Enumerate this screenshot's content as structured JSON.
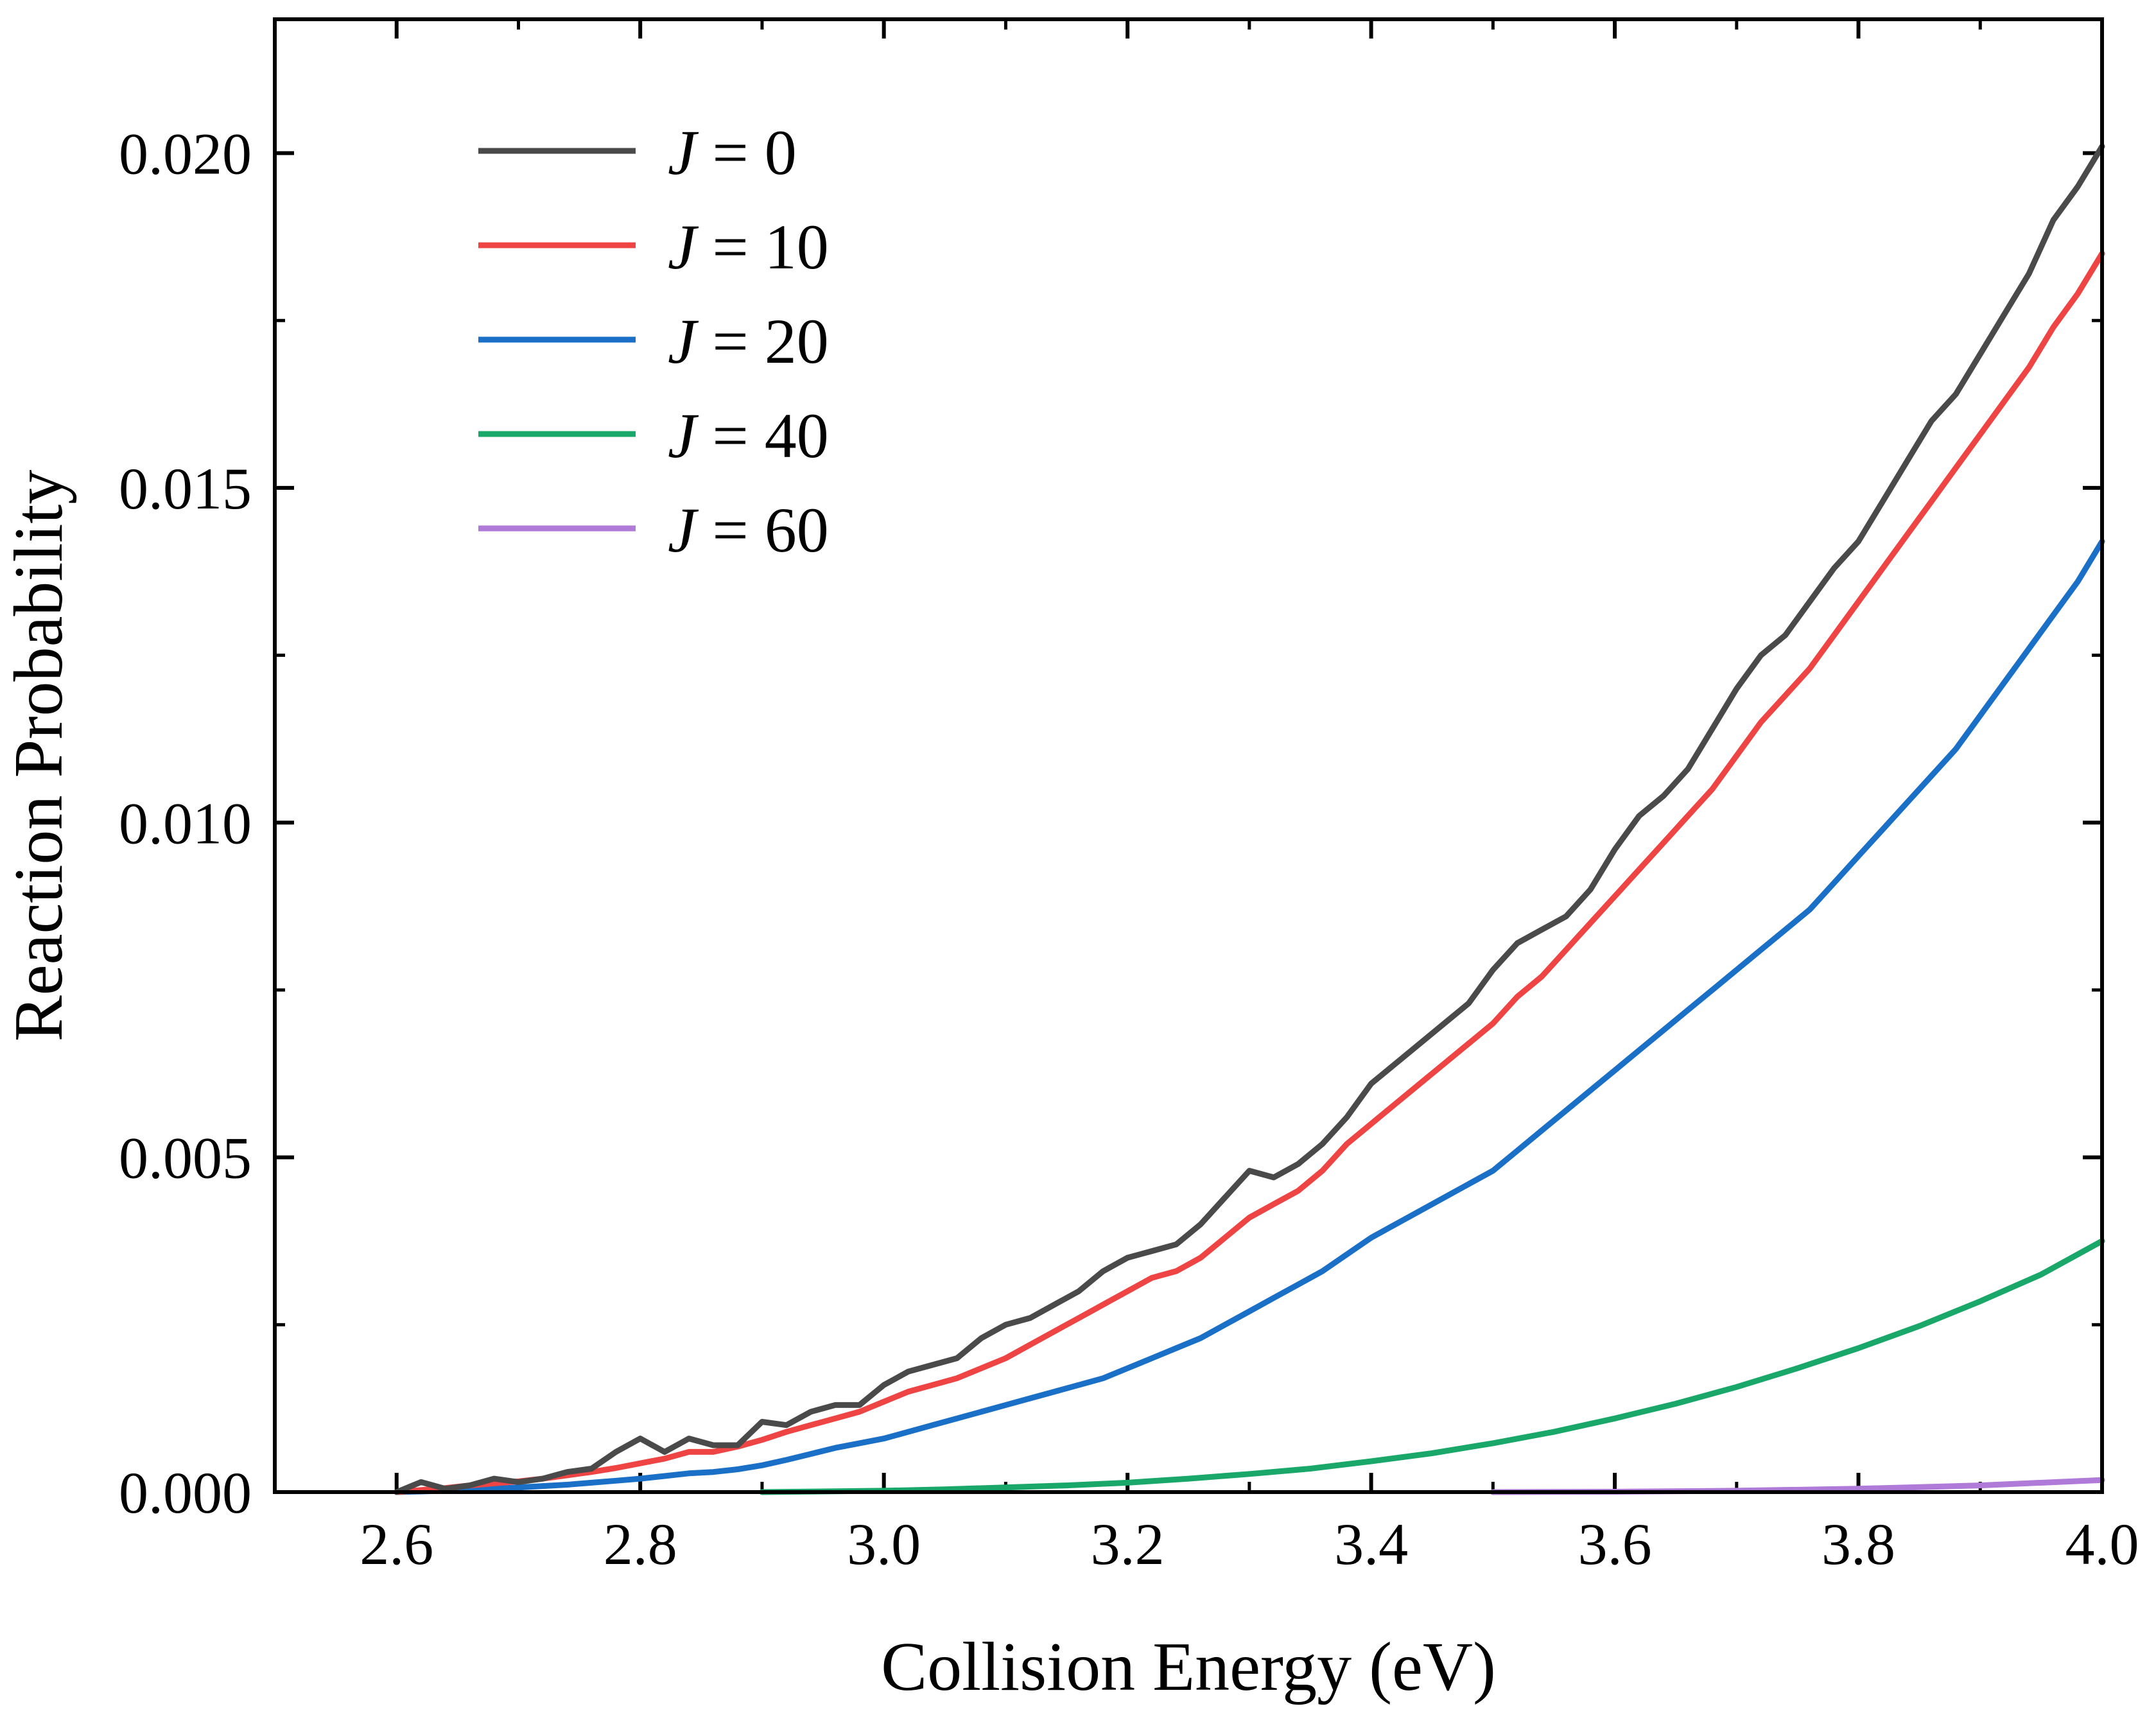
{
  "chart_data": {
    "type": "line",
    "title": "",
    "xlabel": "Collision Energy (eV)",
    "ylabel": "Reaction Probability",
    "xlim": [
      2.5,
      4.0
    ],
    "ylim": [
      0.0,
      0.022
    ],
    "grid": false,
    "legend_position": "top-left",
    "x_ticks": [
      2.6,
      2.8,
      3.0,
      3.2,
      3.4,
      3.6,
      3.8,
      4.0
    ],
    "x_tick_labels": [
      "2.6",
      "2.8",
      "3.0",
      "3.2",
      "3.4",
      "3.6",
      "3.8",
      "4.0"
    ],
    "y_ticks": [
      0.0,
      0.005,
      0.01,
      0.015,
      0.02
    ],
    "y_tick_labels": [
      "0.000",
      "0.005",
      "0.010",
      "0.015",
      "0.020"
    ],
    "y_minor_ticks": [
      0.0025,
      0.0075,
      0.0125,
      0.0175
    ],
    "x_minor_ticks": [
      2.5,
      2.7,
      2.9,
      3.1,
      3.3,
      3.5,
      3.7,
      3.9
    ],
    "series": [
      {
        "name": "J = 0",
        "legend_prefix": "J",
        "legend_suffix": " = 0",
        "color": "#4a4a4a",
        "x": [
          2.6,
          2.62,
          2.64,
          2.66,
          2.68,
          2.7,
          2.72,
          2.74,
          2.76,
          2.78,
          2.8,
          2.82,
          2.84,
          2.86,
          2.88,
          2.9,
          2.92,
          2.94,
          2.96,
          2.98,
          3.0,
          3.02,
          3.04,
          3.06,
          3.08,
          3.1,
          3.12,
          3.14,
          3.16,
          3.18,
          3.2,
          3.22,
          3.24,
          3.26,
          3.28,
          3.3,
          3.32,
          3.34,
          3.36,
          3.38,
          3.4,
          3.42,
          3.44,
          3.46,
          3.48,
          3.5,
          3.52,
          3.54,
          3.56,
          3.58,
          3.6,
          3.62,
          3.64,
          3.66,
          3.68,
          3.7,
          3.72,
          3.74,
          3.76,
          3.78,
          3.8,
          3.82,
          3.84,
          3.86,
          3.88,
          3.9,
          3.92,
          3.94,
          3.96,
          3.98,
          4.0
        ],
        "y": [
          0.0,
          0.00015,
          5e-05,
          0.0001,
          0.0002,
          0.00015,
          0.0002,
          0.0003,
          0.00035,
          0.0006,
          0.0008,
          0.0006,
          0.0008,
          0.0007,
          0.0007,
          0.00105,
          0.001,
          0.0012,
          0.0013,
          0.0013,
          0.0016,
          0.0018,
          0.0019,
          0.002,
          0.0023,
          0.0025,
          0.0026,
          0.0028,
          0.003,
          0.0033,
          0.0035,
          0.0036,
          0.0037,
          0.004,
          0.0044,
          0.0048,
          0.0047,
          0.0049,
          0.0052,
          0.0056,
          0.0061,
          0.0064,
          0.0067,
          0.007,
          0.0073,
          0.0078,
          0.0082,
          0.0084,
          0.0086,
          0.009,
          0.0096,
          0.0101,
          0.0104,
          0.0108,
          0.0114,
          0.012,
          0.0125,
          0.0128,
          0.0133,
          0.0138,
          0.0142,
          0.0148,
          0.0154,
          0.016,
          0.0164,
          0.017,
          0.0176,
          0.0182,
          0.019,
          0.0195,
          0.0201
        ]
      },
      {
        "name": "J = 10",
        "legend_prefix": "J",
        "legend_suffix": " = 10",
        "color": "#ee4444",
        "x": [
          2.6,
          2.62,
          2.64,
          2.66,
          2.68,
          2.7,
          2.72,
          2.74,
          2.76,
          2.78,
          2.8,
          2.82,
          2.84,
          2.86,
          2.88,
          2.9,
          2.92,
          2.94,
          2.96,
          2.98,
          3.0,
          3.02,
          3.04,
          3.06,
          3.08,
          3.1,
          3.12,
          3.14,
          3.16,
          3.18,
          3.2,
          3.22,
          3.24,
          3.26,
          3.28,
          3.3,
          3.32,
          3.34,
          3.36,
          3.38,
          3.4,
          3.42,
          3.44,
          3.46,
          3.48,
          3.5,
          3.52,
          3.54,
          3.56,
          3.58,
          3.6,
          3.62,
          3.64,
          3.66,
          3.68,
          3.7,
          3.72,
          3.74,
          3.76,
          3.78,
          3.8,
          3.82,
          3.84,
          3.86,
          3.88,
          3.9,
          3.92,
          3.94,
          3.96,
          3.98,
          4.0
        ],
        "y": [
          0.0,
          3e-05,
          6e-05,
          0.0001,
          0.00013,
          0.00016,
          0.0002,
          0.00025,
          0.0003,
          0.00036,
          0.00043,
          0.0005,
          0.0006,
          0.0006,
          0.00068,
          0.00078,
          0.0009,
          0.001,
          0.0011,
          0.0012,
          0.00135,
          0.0015,
          0.0016,
          0.0017,
          0.00185,
          0.002,
          0.0022,
          0.0024,
          0.0026,
          0.0028,
          0.003,
          0.0032,
          0.0033,
          0.0035,
          0.0038,
          0.0041,
          0.0043,
          0.0045,
          0.0048,
          0.0052,
          0.0055,
          0.0058,
          0.0061,
          0.0064,
          0.0067,
          0.007,
          0.0074,
          0.0077,
          0.0081,
          0.0085,
          0.0089,
          0.0093,
          0.0097,
          0.0101,
          0.0105,
          0.011,
          0.0115,
          0.0119,
          0.0123,
          0.0128,
          0.0133,
          0.0138,
          0.0143,
          0.0148,
          0.0153,
          0.0158,
          0.0163,
          0.0168,
          0.0174,
          0.0179,
          0.0185
        ]
      },
      {
        "name": "J = 20",
        "legend_prefix": "J",
        "legend_suffix": " = 20",
        "color": "#1a6fc7",
        "x": [
          2.6,
          2.62,
          2.64,
          2.66,
          2.68,
          2.7,
          2.72,
          2.74,
          2.76,
          2.78,
          2.8,
          2.82,
          2.84,
          2.86,
          2.88,
          2.9,
          2.92,
          2.94,
          2.96,
          2.98,
          3.0,
          3.02,
          3.04,
          3.06,
          3.08,
          3.1,
          3.12,
          3.14,
          3.16,
          3.18,
          3.2,
          3.22,
          3.24,
          3.26,
          3.28,
          3.3,
          3.32,
          3.34,
          3.36,
          3.38,
          3.4,
          3.42,
          3.44,
          3.46,
          3.48,
          3.5,
          3.52,
          3.54,
          3.56,
          3.58,
          3.6,
          3.62,
          3.64,
          3.66,
          3.68,
          3.7,
          3.72,
          3.74,
          3.76,
          3.78,
          3.8,
          3.82,
          3.84,
          3.86,
          3.88,
          3.9,
          3.92,
          3.94,
          3.96,
          3.98,
          4.0
        ],
        "y": [
          0.0,
          1e-05,
          2e-05,
          3e-05,
          5e-05,
          7e-05,
          9e-05,
          0.00011,
          0.00014,
          0.00017,
          0.0002,
          0.00024,
          0.00028,
          0.0003,
          0.00034,
          0.0004,
          0.00048,
          0.00057,
          0.00066,
          0.00073,
          0.0008,
          0.0009,
          0.001,
          0.0011,
          0.0012,
          0.0013,
          0.0014,
          0.0015,
          0.0016,
          0.0017,
          0.00185,
          0.002,
          0.00215,
          0.0023,
          0.0025,
          0.0027,
          0.0029,
          0.0031,
          0.0033,
          0.00355,
          0.0038,
          0.004,
          0.0042,
          0.0044,
          0.0046,
          0.0048,
          0.0051,
          0.0054,
          0.0057,
          0.006,
          0.0063,
          0.0066,
          0.0069,
          0.0072,
          0.0075,
          0.0078,
          0.0081,
          0.0084,
          0.0087,
          0.0091,
          0.0095,
          0.0099,
          0.0103,
          0.0107,
          0.0111,
          0.0116,
          0.0121,
          0.0126,
          0.0131,
          0.0136,
          0.0142
        ]
      },
      {
        "name": "J = 40",
        "legend_prefix": "J",
        "legend_suffix": " = 40",
        "color": "#1aa86a",
        "x": [
          2.9,
          2.95,
          3.0,
          3.05,
          3.1,
          3.15,
          3.2,
          3.25,
          3.3,
          3.35,
          3.4,
          3.45,
          3.5,
          3.55,
          3.6,
          3.65,
          3.7,
          3.75,
          3.8,
          3.85,
          3.9,
          3.95,
          4.0
        ],
        "y": [
          0.0,
          1e-05,
          2e-05,
          4e-05,
          7e-05,
          0.0001,
          0.00014,
          0.0002,
          0.00027,
          0.00035,
          0.00046,
          0.00058,
          0.00073,
          0.0009,
          0.0011,
          0.00132,
          0.00157,
          0.00185,
          0.00215,
          0.00248,
          0.00285,
          0.00325,
          0.00375
        ]
      },
      {
        "name": "J = 60",
        "legend_prefix": "J",
        "legend_suffix": " = 60",
        "color": "#b07ad8",
        "x": [
          3.5,
          3.6,
          3.7,
          3.8,
          3.9,
          4.0
        ],
        "y": [
          0.0,
          5e-06,
          2e-05,
          5e-05,
          0.0001,
          0.00018
        ]
      }
    ]
  }
}
